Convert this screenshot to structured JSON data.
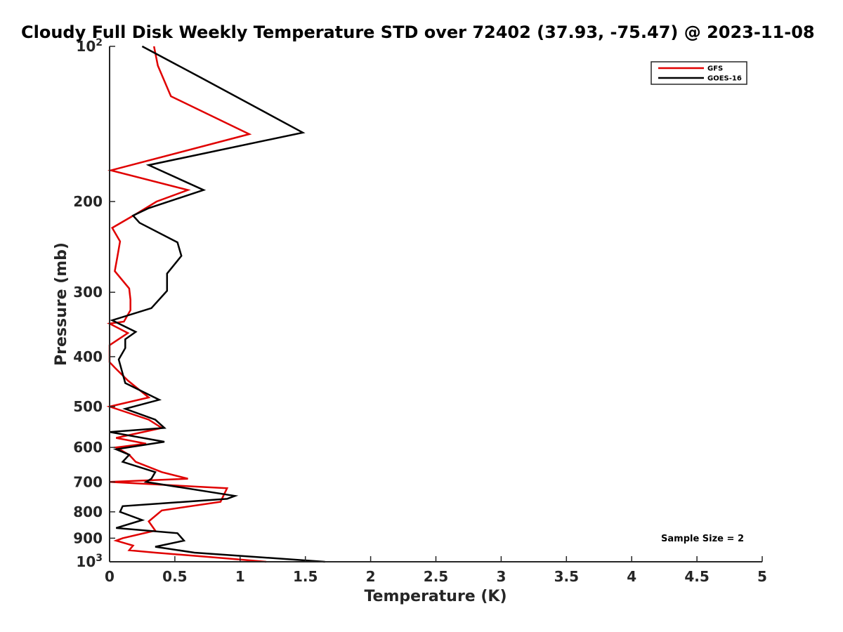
{
  "chart_data": {
    "type": "line",
    "title": "Cloudy Full Disk Weekly Temperature STD over 72402 (37.93, -75.47) @ 2023-11-08",
    "xlabel": "Temperature (K)",
    "ylabel": "Pressure (mb)",
    "xlim": [
      0,
      5
    ],
    "ylim": [
      100,
      1000
    ],
    "yscale": "log",
    "y_reversed": true,
    "grid": false,
    "legend_position": "top-right",
    "x_ticks": [
      {
        "value": 0,
        "label": "0"
      },
      {
        "value": 0.5,
        "label": "0.5"
      },
      {
        "value": 1,
        "label": "1"
      },
      {
        "value": 1.5,
        "label": "1.5"
      },
      {
        "value": 2,
        "label": "2"
      },
      {
        "value": 2.5,
        "label": "2.5"
      },
      {
        "value": 3,
        "label": "3"
      },
      {
        "value": 3.5,
        "label": "3.5"
      },
      {
        "value": 4,
        "label": "4"
      },
      {
        "value": 4.5,
        "label": "4.5"
      },
      {
        "value": 5,
        "label": "5"
      }
    ],
    "y_ticks": [
      {
        "value": 100,
        "label": "10",
        "exp": "2"
      },
      {
        "value": 200,
        "label": "200"
      },
      {
        "value": 300,
        "label": "300"
      },
      {
        "value": 400,
        "label": "400"
      },
      {
        "value": 500,
        "label": "500"
      },
      {
        "value": 600,
        "label": "600"
      },
      {
        "value": 700,
        "label": "700"
      },
      {
        "value": 800,
        "label": "800"
      },
      {
        "value": 900,
        "label": "900"
      },
      {
        "value": 1000,
        "label": "10",
        "exp": "3"
      }
    ],
    "annotation": "Sample Size = 2",
    "series": [
      {
        "name": "GFS",
        "color": "#e00000",
        "points": [
          [
            0.34,
            100
          ],
          [
            0.37,
            109
          ],
          [
            0.47,
            125
          ],
          [
            1.07,
            148
          ],
          [
            0.01,
            174
          ],
          [
            0.6,
            190
          ],
          [
            0.36,
            200
          ],
          [
            0.21,
            211
          ],
          [
            0.02,
            225
          ],
          [
            0.08,
            239
          ],
          [
            0.06,
            256
          ],
          [
            0.04,
            273
          ],
          [
            0.15,
            295
          ],
          [
            0.16,
            310
          ],
          [
            0.16,
            325
          ],
          [
            0.11,
            342
          ],
          [
            0.0,
            345
          ],
          [
            0.14,
            360
          ],
          [
            0.0,
            380
          ],
          [
            0.0,
            410
          ],
          [
            0.04,
            420
          ],
          [
            0.14,
            445
          ],
          [
            0.3,
            480
          ],
          [
            0.0,
            500
          ],
          [
            0.3,
            530
          ],
          [
            0.4,
            550
          ],
          [
            0.05,
            575
          ],
          [
            0.28,
            590
          ],
          [
            0.05,
            600
          ],
          [
            0.15,
            620
          ],
          [
            0.2,
            640
          ],
          [
            0.4,
            670
          ],
          [
            0.6,
            690
          ],
          [
            0.0,
            700
          ],
          [
            0.9,
            720
          ],
          [
            0.85,
            765
          ],
          [
            0.4,
            795
          ],
          [
            0.3,
            835
          ],
          [
            0.35,
            870
          ],
          [
            0.1,
            900
          ],
          [
            0.05,
            910
          ],
          [
            0.18,
            930
          ],
          [
            0.15,
            950
          ],
          [
            0.35,
            960
          ],
          [
            0.9,
            985
          ],
          [
            1.2,
            1000
          ]
        ]
      },
      {
        "name": "GOES-16",
        "color": "#000000",
        "points": [
          [
            0.25,
            100
          ],
          [
            0.7,
            115
          ],
          [
            1.48,
            147
          ],
          [
            0.3,
            170
          ],
          [
            0.72,
            190
          ],
          [
            0.3,
            206
          ],
          [
            0.18,
            213
          ],
          [
            0.23,
            220
          ],
          [
            0.52,
            240
          ],
          [
            0.55,
            255
          ],
          [
            0.44,
            276
          ],
          [
            0.44,
            298
          ],
          [
            0.32,
            322
          ],
          [
            0.02,
            340
          ],
          [
            0.2,
            358
          ],
          [
            0.12,
            370
          ],
          [
            0.12,
            385
          ],
          [
            0.07,
            405
          ],
          [
            0.12,
            450
          ],
          [
            0.38,
            485
          ],
          [
            0.12,
            505
          ],
          [
            0.35,
            530
          ],
          [
            0.42,
            550
          ],
          [
            0.0,
            560
          ],
          [
            0.42,
            585
          ],
          [
            0.05,
            605
          ],
          [
            0.15,
            620
          ],
          [
            0.1,
            640
          ],
          [
            0.35,
            670
          ],
          [
            0.32,
            690
          ],
          [
            0.28,
            700
          ],
          [
            0.96,
            745
          ],
          [
            0.9,
            755
          ],
          [
            0.1,
            780
          ],
          [
            0.08,
            800
          ],
          [
            0.25,
            830
          ],
          [
            0.05,
            860
          ],
          [
            0.52,
            880
          ],
          [
            0.57,
            910
          ],
          [
            0.35,
            935
          ],
          [
            0.65,
            960
          ],
          [
            1.65,
            1000
          ]
        ]
      }
    ]
  }
}
